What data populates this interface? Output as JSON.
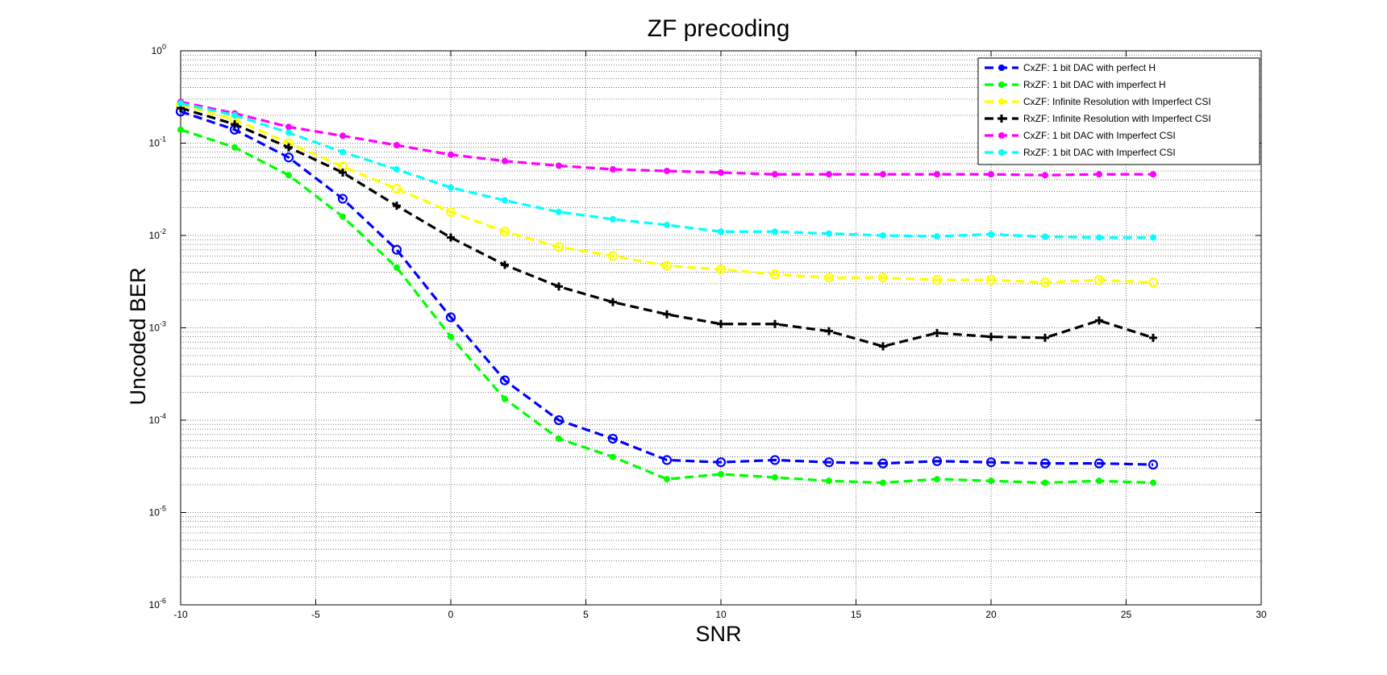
{
  "chart_data": {
    "type": "line",
    "title": "ZF precoding",
    "xlabel": "SNR",
    "ylabel": "Uncoded BER",
    "xlim": [
      -10,
      30
    ],
    "ylim": [
      1e-06,
      1
    ],
    "y_scale": "log",
    "grid": true,
    "legend_position": "top-right",
    "x_ticks": [
      -10,
      -5,
      0,
      5,
      10,
      15,
      20,
      25,
      30
    ],
    "x_tick_labels": [
      "-10",
      "-5",
      "0",
      "5",
      "10",
      "15",
      "20",
      "25",
      "30"
    ],
    "y_ticks": [
      {
        "value": 1e-06,
        "base": "10",
        "exp": "-6"
      },
      {
        "value": 1e-05,
        "base": "10",
        "exp": "-5"
      },
      {
        "value": 0.0001,
        "base": "10",
        "exp": "-4"
      },
      {
        "value": 0.001,
        "base": "10",
        "exp": "-3"
      },
      {
        "value": 0.01,
        "base": "10",
        "exp": "-2"
      },
      {
        "value": 0.1,
        "base": "10",
        "exp": "-1"
      },
      {
        "value": 1,
        "base": "10",
        "exp": "0"
      }
    ],
    "x": [
      -10,
      -8,
      -6,
      -4,
      -2,
      0,
      2,
      4,
      6,
      8,
      10,
      12,
      14,
      16,
      18,
      20,
      22,
      24,
      26
    ],
    "series": [
      {
        "name": "CxZF: 1 bit DAC with perfect H",
        "color": "#0000ff",
        "marker": "circle",
        "values": [
          0.22,
          0.14,
          0.07,
          0.025,
          0.007,
          0.0013,
          0.00027,
          0.0001,
          6.3e-05,
          3.7e-05,
          3.5e-05,
          3.7e-05,
          3.5e-05,
          3.4e-05,
          3.6e-05,
          3.5e-05,
          3.4e-05,
          3.4e-05,
          3.3e-05
        ]
      },
      {
        "name": "RxZF: 1 bit DAC with imperfect H",
        "color": "#00ff00",
        "marker": "dot",
        "values": [
          0.14,
          0.09,
          0.045,
          0.016,
          0.0045,
          0.0008,
          0.00017,
          6.3e-05,
          4e-05,
          2.3e-05,
          2.6e-05,
          2.4e-05,
          2.2e-05,
          2.1e-05,
          2.3e-05,
          2.2e-05,
          2.1e-05,
          2.2e-05,
          2.1e-05
        ]
      },
      {
        "name": "CxZF: Infinite Resolution with Imperfect CSI",
        "color": "#ffff00",
        "marker": "circle",
        "values": [
          0.26,
          0.18,
          0.1,
          0.056,
          0.032,
          0.018,
          0.011,
          0.0075,
          0.006,
          0.0047,
          0.0043,
          0.0038,
          0.0035,
          0.0035,
          0.0033,
          0.0033,
          0.0031,
          0.0033,
          0.0031
        ]
      },
      {
        "name": "RxZF: Infinite Resolution with Imperfect CSI",
        "color": "#000000",
        "marker": "plus",
        "values": [
          0.24,
          0.16,
          0.09,
          0.048,
          0.021,
          0.0095,
          0.0048,
          0.0028,
          0.0019,
          0.0014,
          0.0011,
          0.0011,
          0.00092,
          0.00063,
          0.00088,
          0.0008,
          0.00078,
          0.0012,
          0.00078
        ]
      },
      {
        "name": "CxZF: 1 bit DAC with Imperfect CSI",
        "color": "#ff00ff",
        "marker": "dot",
        "values": [
          0.28,
          0.21,
          0.15,
          0.12,
          0.095,
          0.075,
          0.064,
          0.057,
          0.052,
          0.05,
          0.048,
          0.046,
          0.046,
          0.046,
          0.046,
          0.046,
          0.045,
          0.046,
          0.046
        ]
      },
      {
        "name": "RxZF: 1 bit DAC with Imperfect CSI",
        "color": "#00ffff",
        "marker": "dot",
        "values": [
          0.27,
          0.2,
          0.13,
          0.08,
          0.052,
          0.033,
          0.024,
          0.018,
          0.015,
          0.013,
          0.011,
          0.011,
          0.0105,
          0.01,
          0.0098,
          0.0103,
          0.0097,
          0.0095,
          0.0095
        ]
      }
    ]
  }
}
